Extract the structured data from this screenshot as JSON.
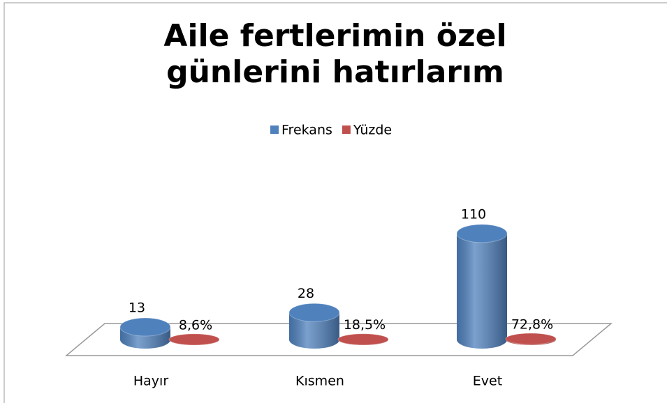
{
  "chart_data": {
    "type": "cylinder",
    "title": "Aile fertlerimin özel günlerini hatırlarım",
    "categories": [
      "Hayır",
      "Kısmen",
      "Evet"
    ],
    "series": [
      {
        "name": "Frekans",
        "color": "#4f81bd",
        "values": [
          13,
          28,
          110
        ]
      },
      {
        "name": "Yüzde",
        "color": "#c0504d",
        "values": [
          0.086,
          0.185,
          0.728
        ],
        "value_labels": [
          "8,6%",
          "18,5%",
          "72,8%"
        ]
      }
    ],
    "ylim": [
      0,
      120
    ],
    "legend": "top"
  }
}
